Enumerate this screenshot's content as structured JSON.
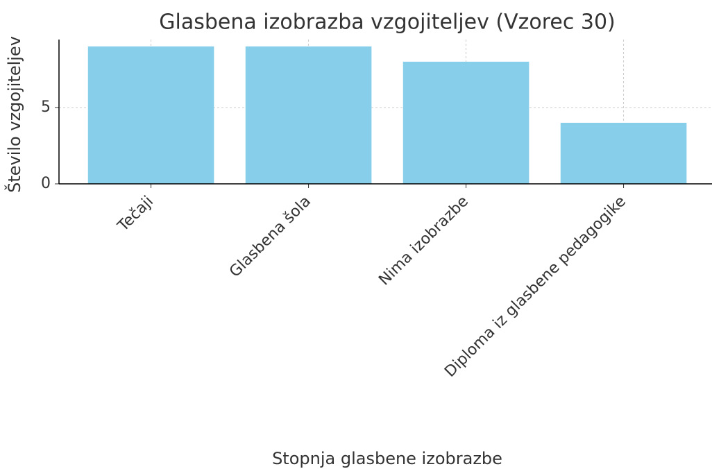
{
  "chart_data": {
    "type": "bar",
    "title": "Glasbena izobrazba vzgojiteljev (Vzorec 30)",
    "xlabel": "Stopnja glasbene izobrazbe",
    "ylabel": "Število vzgojiteljev",
    "categories": [
      "Tečaji",
      "Glasbena šola",
      "Nima izobrazbe",
      "Diploma iz glasbene pedagogike"
    ],
    "values": [
      9,
      9,
      8,
      4
    ],
    "color": "#87ceeb",
    "ylim": [
      0,
      9.45
    ],
    "yticks": [
      0,
      5
    ],
    "grid": true
  }
}
